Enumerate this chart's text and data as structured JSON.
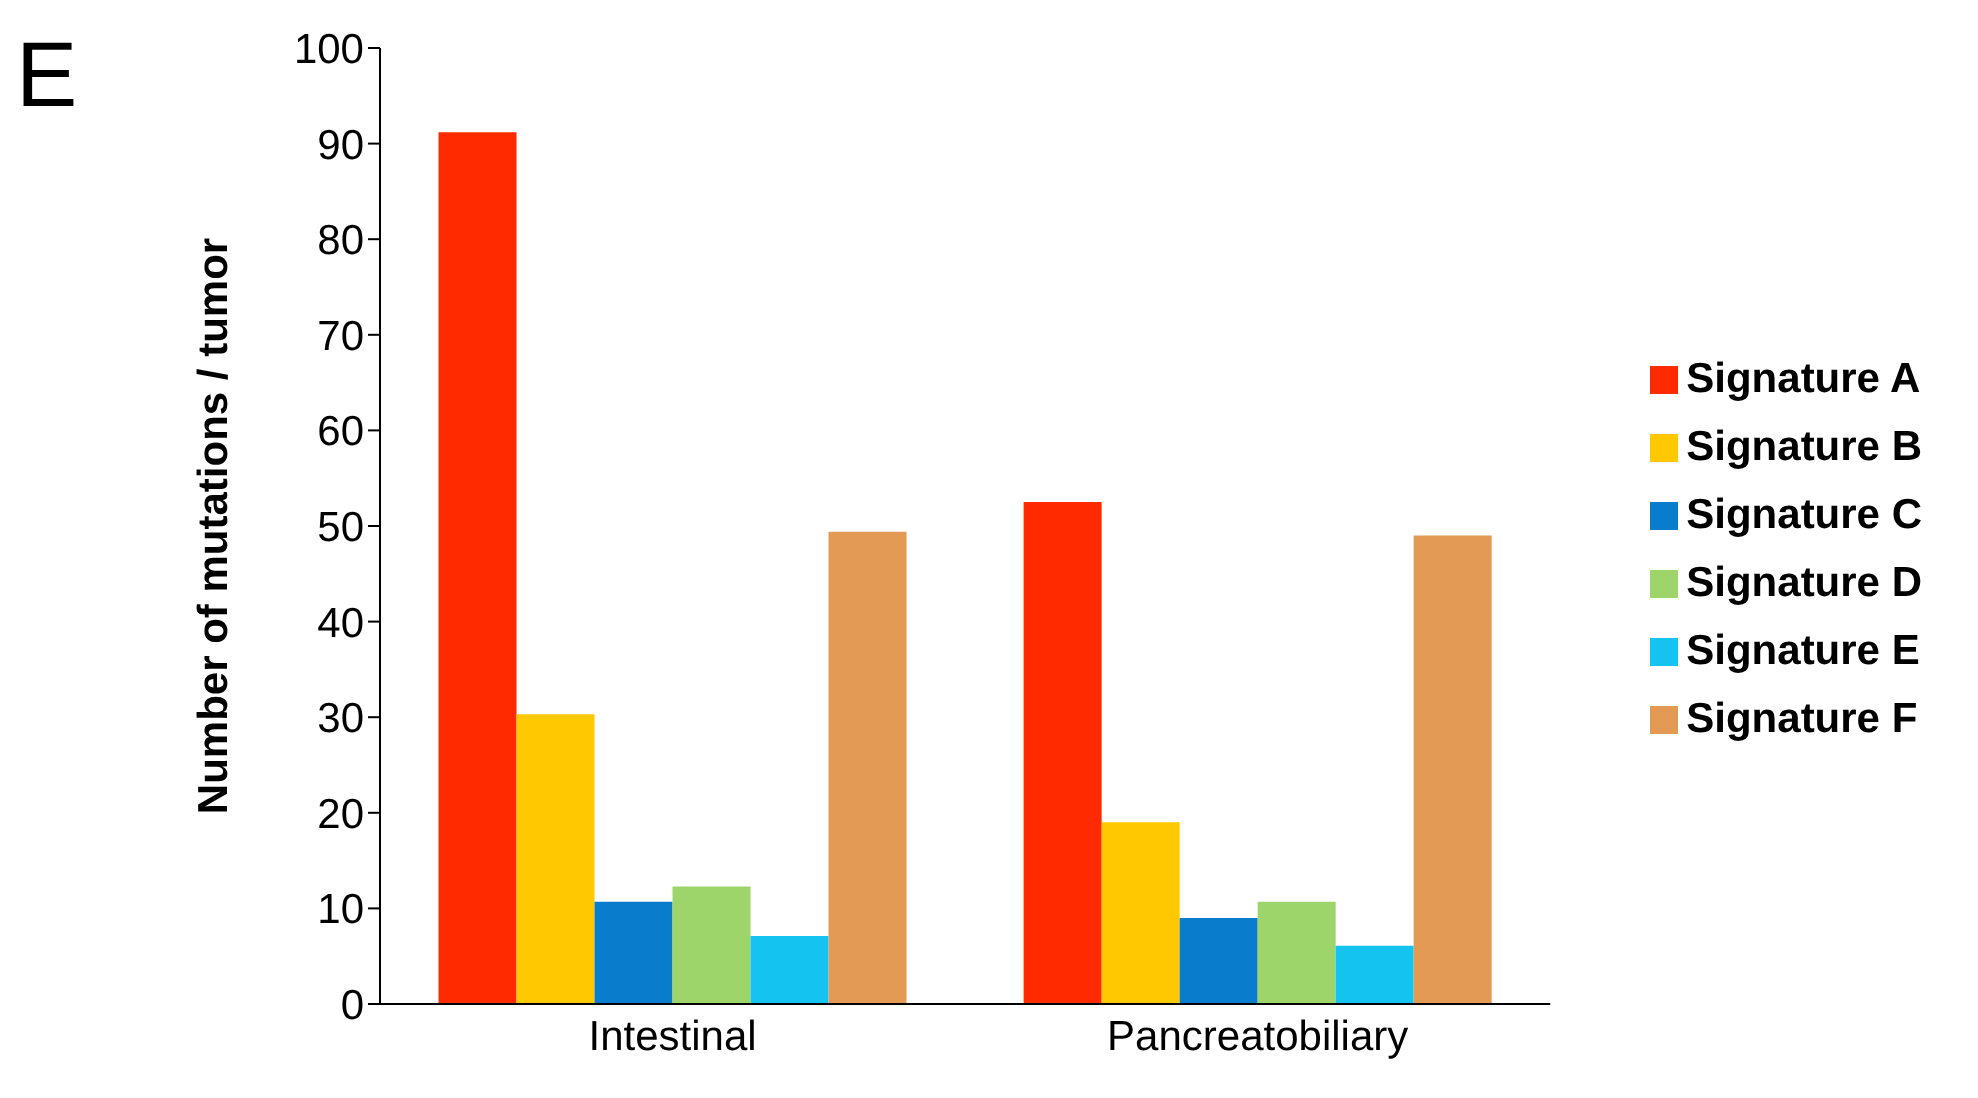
{
  "chart_data": {
    "type": "bar",
    "ylabel": "Number of mutations / tumor",
    "annotations": [
      "E"
    ],
    "categories": [
      "Intestinal",
      "Pancreatobiliary"
    ],
    "series": [
      {
        "name": "Signature A",
        "color": "#ff2a00",
        "values": [
          91.2,
          52.5
        ]
      },
      {
        "name": "Signature B",
        "color": "#ffc800",
        "values": [
          30.3,
          19.0
        ]
      },
      {
        "name": "Signature C",
        "color": "#0a7ccc",
        "values": [
          10.7,
          9.0
        ]
      },
      {
        "name": "Signature D",
        "color": "#9dd56a",
        "values": [
          12.3,
          10.7
        ]
      },
      {
        "name": "Signature E",
        "color": "#14c3f0",
        "values": [
          7.1,
          6.1
        ]
      },
      {
        "name": "Signature F",
        "color": "#e39a55",
        "values": [
          49.4,
          49.0
        ]
      }
    ],
    "ylim": [
      0,
      100
    ],
    "yticks": [
      0,
      10,
      20,
      30,
      40,
      50,
      60,
      70,
      80,
      90,
      100
    ],
    "grid": false,
    "legend": "right"
  }
}
